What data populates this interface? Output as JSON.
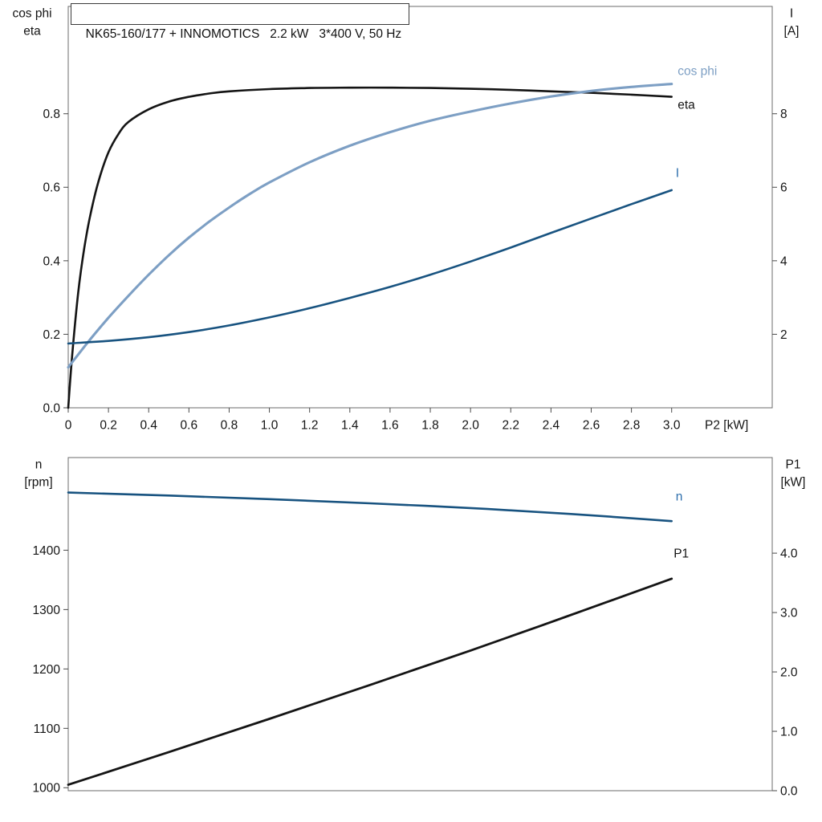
{
  "panel": {
    "title": "NK65-160/177 + INNOMOTICS   2.2 kW   3*400 V, 50 Hz"
  },
  "colors": {
    "black": "#141414",
    "cos_phi_blue": "#7d9fc4",
    "dark_blue": "#185380",
    "blue_label": "#2e6fad",
    "border": "#6b6b6b",
    "tick": "#4a4a4a",
    "text": "#141414"
  },
  "chart_data": [
    {
      "type": "line",
      "title": "NK65-160/177 + INNOMOTICS   2.2 kW   3*400 V, 50 Hz",
      "x_axis": {
        "label": "P2 [kW]",
        "range": [
          0,
          3.5
        ],
        "ticks": [
          {
            "v": 0,
            "label": "0"
          },
          {
            "v": 0.2,
            "label": "0.2"
          },
          {
            "v": 0.4,
            "label": "0.4"
          },
          {
            "v": 0.6,
            "label": "0.6"
          },
          {
            "v": 0.8,
            "label": "0.8"
          },
          {
            "v": 1.0,
            "label": "1.0"
          },
          {
            "v": 1.2,
            "label": "1.2"
          },
          {
            "v": 1.4,
            "label": "1.4"
          },
          {
            "v": 1.6,
            "label": "1.6"
          },
          {
            "v": 1.8,
            "label": "1.8"
          },
          {
            "v": 2.0,
            "label": "2.0"
          },
          {
            "v": 2.2,
            "label": "2.2"
          },
          {
            "v": 2.4,
            "label": "2.4"
          },
          {
            "v": 2.6,
            "label": "2.6"
          },
          {
            "v": 2.8,
            "label": "2.8"
          },
          {
            "v": 3.0,
            "label": "3.0"
          }
        ]
      },
      "left_axis": {
        "title_lines": [
          "cos phi",
          "eta"
        ],
        "range": [
          0,
          1.092
        ],
        "ticks": [
          {
            "v": 0.0,
            "label": "0.0"
          },
          {
            "v": 0.2,
            "label": "0.2"
          },
          {
            "v": 0.4,
            "label": "0.4"
          },
          {
            "v": 0.6,
            "label": "0.6"
          },
          {
            "v": 0.8,
            "label": "0.8"
          }
        ]
      },
      "right_axis": {
        "title_lines": [
          "I",
          "[A]"
        ],
        "range": [
          0,
          10.92
        ],
        "ticks": [
          {
            "v": 2,
            "label": "2"
          },
          {
            "v": 4,
            "label": "4"
          },
          {
            "v": 6,
            "label": "6"
          },
          {
            "v": 8,
            "label": "8"
          }
        ]
      },
      "series": [
        {
          "name": "eta",
          "axis": "left",
          "color": "#141414",
          "width": 2.6,
          "label": {
            "text": "eta",
            "x": 3.03,
            "y": 0.825,
            "color": "#141414"
          },
          "points": [
            [
              0,
              0
            ],
            [
              0.02,
              0.145
            ],
            [
              0.05,
              0.315
            ],
            [
              0.08,
              0.435
            ],
            [
              0.11,
              0.525
            ],
            [
              0.15,
              0.615
            ],
            [
              0.2,
              0.695
            ],
            [
              0.25,
              0.745
            ],
            [
              0.3,
              0.778
            ],
            [
              0.4,
              0.812
            ],
            [
              0.5,
              0.833
            ],
            [
              0.6,
              0.846
            ],
            [
              0.7,
              0.855
            ],
            [
              0.8,
              0.861
            ],
            [
              1.0,
              0.867
            ],
            [
              1.2,
              0.87
            ],
            [
              1.4,
              0.871
            ],
            [
              1.6,
              0.871
            ],
            [
              1.8,
              0.87
            ],
            [
              2.0,
              0.868
            ],
            [
              2.2,
              0.865
            ],
            [
              2.4,
              0.861
            ],
            [
              2.6,
              0.857
            ],
            [
              2.8,
              0.852
            ],
            [
              3.0,
              0.846
            ]
          ]
        },
        {
          "name": "cos phi",
          "axis": "left",
          "color": "#7d9fc4",
          "width": 3.1,
          "label": {
            "text": "cos phi",
            "x": 3.03,
            "y": 0.917,
            "color": "#7d9fc4"
          },
          "points": [
            [
              0,
              0.11
            ],
            [
              0.1,
              0.18
            ],
            [
              0.2,
              0.245
            ],
            [
              0.3,
              0.305
            ],
            [
              0.4,
              0.362
            ],
            [
              0.5,
              0.415
            ],
            [
              0.6,
              0.463
            ],
            [
              0.7,
              0.506
            ],
            [
              0.8,
              0.545
            ],
            [
              0.9,
              0.581
            ],
            [
              1.0,
              0.613
            ],
            [
              1.2,
              0.668
            ],
            [
              1.4,
              0.713
            ],
            [
              1.6,
              0.75
            ],
            [
              1.8,
              0.781
            ],
            [
              2.0,
              0.806
            ],
            [
              2.2,
              0.828
            ],
            [
              2.4,
              0.847
            ],
            [
              2.6,
              0.862
            ],
            [
              2.8,
              0.873
            ],
            [
              3.0,
              0.881
            ]
          ]
        },
        {
          "name": "I",
          "axis": "right",
          "color": "#185380",
          "width": 2.6,
          "label": {
            "text": "I",
            "x": 3.02,
            "y": 6.4,
            "color": "#2e6fad"
          },
          "points": [
            [
              0,
              1.75
            ],
            [
              0.2,
              1.82
            ],
            [
              0.4,
              1.92
            ],
            [
              0.6,
              2.06
            ],
            [
              0.8,
              2.24
            ],
            [
              1.0,
              2.46
            ],
            [
              1.2,
              2.71
            ],
            [
              1.4,
              2.99
            ],
            [
              1.6,
              3.29
            ],
            [
              1.8,
              3.62
            ],
            [
              2.0,
              3.98
            ],
            [
              2.2,
              4.36
            ],
            [
              2.4,
              4.76
            ],
            [
              2.6,
              5.15
            ],
            [
              2.8,
              5.54
            ],
            [
              3.0,
              5.92
            ]
          ]
        }
      ]
    },
    {
      "type": "line",
      "title": "",
      "x_axis": {
        "label": "",
        "range": [
          0,
          3.5
        ],
        "ticks": []
      },
      "left_axis": {
        "title_lines": [
          "n",
          "[rpm]"
        ],
        "range": [
          995,
          1556
        ],
        "ticks": [
          {
            "v": 1000,
            "label": "1000"
          },
          {
            "v": 1100,
            "label": "1100"
          },
          {
            "v": 1200,
            "label": "1200"
          },
          {
            "v": 1300,
            "label": "1300"
          },
          {
            "v": 1400,
            "label": "1400"
          }
        ]
      },
      "right_axis": {
        "title_lines": [
          "P1",
          "[kW]"
        ],
        "range": [
          0,
          5.61
        ],
        "ticks": [
          {
            "v": 0.0,
            "label": "0.0"
          },
          {
            "v": 1.0,
            "label": "1.0"
          },
          {
            "v": 2.0,
            "label": "2.0"
          },
          {
            "v": 3.0,
            "label": "3.0"
          },
          {
            "v": 4.0,
            "label": "4.0"
          }
        ]
      },
      "series": [
        {
          "name": "n",
          "axis": "left",
          "color": "#185380",
          "width": 2.6,
          "label": {
            "text": "n",
            "x": 3.02,
            "y": 1491,
            "color": "#2e6fad"
          },
          "points": [
            [
              0,
              1497
            ],
            [
              0.5,
              1492
            ],
            [
              1.0,
              1486
            ],
            [
              1.5,
              1479
            ],
            [
              2.0,
              1471
            ],
            [
              2.5,
              1461
            ],
            [
              3.0,
              1449
            ]
          ]
        },
        {
          "name": "P1",
          "axis": "right",
          "color": "#141414",
          "width": 2.8,
          "label": {
            "text": "P1",
            "x": 3.01,
            "y": 4.0,
            "color": "#141414"
          },
          "points": [
            [
              0,
              0.1
            ],
            [
              0.5,
              0.65
            ],
            [
              1.0,
              1.21
            ],
            [
              1.5,
              1.78
            ],
            [
              2.0,
              2.36
            ],
            [
              2.5,
              2.96
            ],
            [
              3.0,
              3.57
            ]
          ]
        }
      ]
    }
  ]
}
